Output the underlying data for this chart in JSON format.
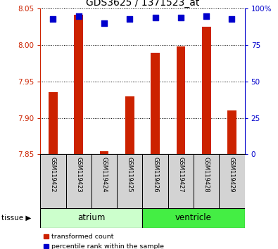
{
  "title": "GDS3625 / 1371523_at",
  "samples": [
    "GSM119422",
    "GSM119423",
    "GSM119424",
    "GSM119425",
    "GSM119426",
    "GSM119427",
    "GSM119428",
    "GSM119429"
  ],
  "transformed_count": [
    7.935,
    8.042,
    7.854,
    7.93,
    7.99,
    7.998,
    8.025,
    7.91
  ],
  "bar_bottom": 7.85,
  "percentile_rank": [
    93,
    95,
    90,
    93,
    94,
    94,
    95,
    93
  ],
  "ylim_left": [
    7.85,
    8.05
  ],
  "ylim_right": [
    0,
    100
  ],
  "yticks_left": [
    7.85,
    7.9,
    7.95,
    8.0,
    8.05
  ],
  "yticks_right": [
    0,
    25,
    50,
    75,
    100
  ],
  "tissue_colors": {
    "atrium": "#ccffcc",
    "ventricle": "#44ee44"
  },
  "bar_color": "#cc2200",
  "dot_color": "#0000cc",
  "bar_width": 0.35,
  "dot_size": 28,
  "figsize": [
    3.95,
    3.54
  ],
  "dpi": 100
}
